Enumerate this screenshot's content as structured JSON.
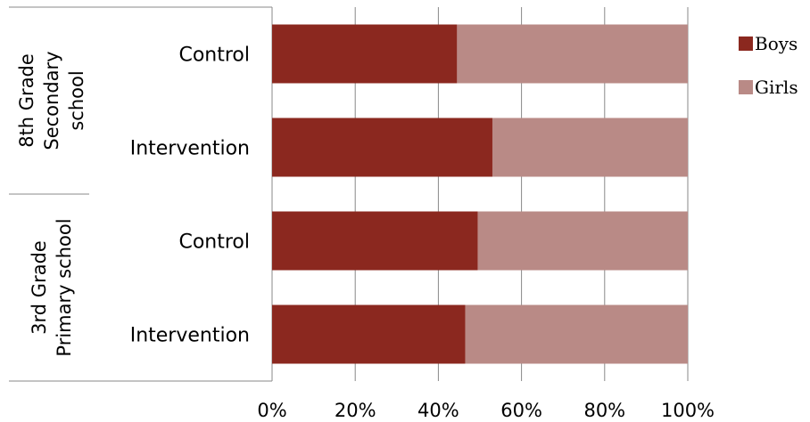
{
  "chart_data": {
    "type": "bar",
    "orientation": "horizontal",
    "stacked": "percent",
    "groups": [
      {
        "label_lines": [
          "8th Grade",
          "Secondary",
          "school"
        ],
        "categories": [
          "Control",
          "Intervention"
        ]
      },
      {
        "label_lines": [
          "3rd Grade",
          "Primary school"
        ],
        "categories": [
          "Control",
          "Intervention"
        ]
      }
    ],
    "categories": [
      "Control",
      "Intervention",
      "Control",
      "Intervention"
    ],
    "series": [
      {
        "name": "Boys",
        "color": "#8B281F",
        "values": [
          44.5,
          53,
          49.5,
          46.5
        ]
      },
      {
        "name": "Girls",
        "color": "#B98A86",
        "values": [
          55.5,
          47,
          50.5,
          53.5
        ]
      }
    ],
    "xticks": [
      "0%",
      "20%",
      "40%",
      "60%",
      "80%",
      "100%"
    ],
    "xlim": [
      0,
      100
    ],
    "grid": true,
    "legend_position": "right"
  }
}
